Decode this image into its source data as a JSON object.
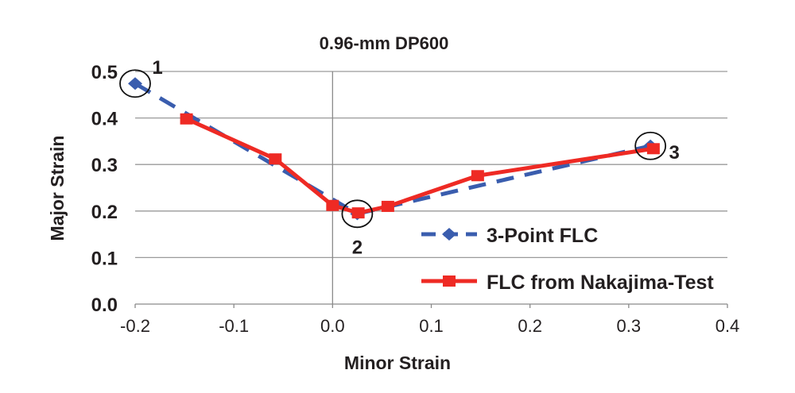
{
  "chart_data": {
    "type": "line",
    "title": "0.96-mm DP600",
    "xlabel": "Minor Strain",
    "ylabel": "Major Strain",
    "xlim": [
      -0.2,
      0.4
    ],
    "ylim": [
      0.0,
      0.5
    ],
    "xticks": [
      "-0.2",
      "-0.1",
      "0.0",
      "0.1",
      "0.2",
      "0.3",
      "0.4"
    ],
    "yticks": [
      "0.0",
      "0.1",
      "0.2",
      "0.3",
      "0.4",
      "0.5"
    ],
    "grid": "horizontal",
    "legend_position": "bottom-right",
    "series": [
      {
        "name": "3-Point FLC",
        "color": "#3a5dae",
        "style": "dashed",
        "marker": "diamond",
        "x": [
          -0.2,
          0.025,
          0.322
        ],
        "y": [
          0.474,
          0.194,
          0.34
        ]
      },
      {
        "name": "FLC from Nakajima-Test",
        "color": "#ee2a24",
        "style": "solid",
        "marker": "square",
        "x": [
          -0.148,
          -0.058,
          0.0,
          0.026,
          0.056,
          0.147,
          0.325
        ],
        "y": [
          0.398,
          0.312,
          0.212,
          0.196,
          0.21,
          0.276,
          0.334
        ]
      }
    ],
    "annotations": [
      {
        "label": "1",
        "x": -0.2,
        "y": 0.474
      },
      {
        "label": "2",
        "x": 0.025,
        "y": 0.194
      },
      {
        "label": "3",
        "x": 0.322,
        "y": 0.34
      }
    ]
  }
}
